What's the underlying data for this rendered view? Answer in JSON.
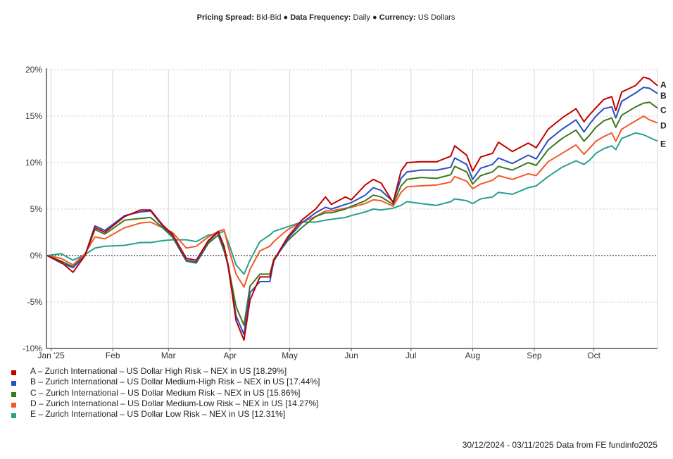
{
  "header": {
    "spread_label": "Pricing Spread:",
    "spread_value": "Bid-Bid",
    "freq_label": "Data Frequency:",
    "freq_value": "Daily",
    "currency_label": "Currency:",
    "currency_value": "US Dollars",
    "separator": "●"
  },
  "chart_data": {
    "type": "line",
    "title": "",
    "xlabel": "",
    "ylabel": "",
    "x_unit": "days since 30/12/2024",
    "xlim": [
      0,
      308
    ],
    "ylim": [
      -10,
      20
    ],
    "yticks": [
      20,
      15,
      10,
      5,
      0,
      -5,
      -10
    ],
    "ytick_labels": [
      "20%",
      "15%",
      "10%",
      "5%",
      "0%",
      "-5%",
      "-10%"
    ],
    "xticks": [
      2,
      33,
      61,
      92,
      122,
      153,
      183,
      214,
      245,
      275
    ],
    "xtick_labels": [
      "Jan '25",
      "Feb",
      "Mar",
      "Apr",
      "May",
      "Jun",
      "Jul",
      "Aug",
      "Sep",
      "Oct"
    ],
    "grid": true,
    "legend_position": "bottom-left",
    "x": [
      0,
      7,
      13,
      19,
      24,
      29,
      39,
      47,
      52,
      58,
      63,
      70,
      75,
      81,
      86,
      89,
      91,
      95,
      99,
      102,
      107,
      112,
      114,
      121,
      128,
      135,
      140,
      143,
      150,
      153,
      160,
      164,
      168,
      174,
      178,
      181,
      188,
      196,
      203,
      205,
      211,
      214,
      218,
      224,
      227,
      234,
      242,
      246,
      252,
      259,
      266,
      270,
      273,
      276,
      280,
      284,
      286,
      289,
      296,
      300,
      303,
      307
    ],
    "series": [
      {
        "id": "A",
        "name": "A – Zurich International – US Dollar High Risk – NEX in US [18.29%]",
        "color": "#c00000",
        "values": [
          0,
          -0.7,
          -1.8,
          0,
          3.0,
          2.5,
          4.2,
          4.9,
          4.9,
          3.3,
          2.3,
          -0.3,
          -0.5,
          1.6,
          2.6,
          1.0,
          -1.0,
          -7.0,
          -9.1,
          -4.8,
          -2.3,
          -2.3,
          -0.5,
          2.0,
          3.8,
          5.0,
          6.3,
          5.5,
          6.3,
          6.0,
          7.6,
          8.2,
          7.8,
          5.7,
          9.1,
          10.0,
          10.1,
          10.1,
          10.7,
          11.8,
          10.8,
          9.1,
          10.6,
          11.0,
          12.2,
          11.2,
          12.1,
          11.6,
          13.6,
          14.8,
          15.8,
          14.4,
          15.2,
          15.9,
          16.8,
          17.1,
          15.6,
          17.6,
          18.3,
          19.2,
          19.0,
          18.29
        ]
      },
      {
        "id": "B",
        "name": "B – Zurich International – US Dollar Medium-High Risk – NEX in US [17.44%]",
        "color": "#2a4fbf",
        "values": [
          0,
          -0.8,
          -1.3,
          0,
          3.2,
          2.7,
          4.3,
          4.7,
          4.8,
          3.2,
          2.2,
          -0.5,
          -0.7,
          1.5,
          2.5,
          0.8,
          -1.2,
          -6.5,
          -8.5,
          -4.0,
          -2.8,
          -2.8,
          -0.6,
          1.8,
          3.5,
          4.6,
          5.2,
          5.0,
          5.5,
          5.7,
          6.5,
          7.3,
          7.0,
          5.8,
          8.3,
          9.0,
          9.2,
          9.2,
          9.5,
          10.5,
          9.8,
          8.2,
          9.4,
          9.8,
          10.5,
          9.9,
          10.8,
          10.4,
          12.4,
          13.6,
          14.6,
          13.3,
          14.2,
          15.0,
          15.8,
          16.0,
          14.8,
          16.6,
          17.5,
          18.1,
          18.0,
          17.44
        ]
      },
      {
        "id": "C",
        "name": "C – Zurich International – US Dollar Medium Risk – NEX in US [15.86%]",
        "color": "#3a7a1a",
        "values": [
          0,
          -0.6,
          -1.2,
          0,
          2.8,
          2.3,
          3.8,
          4.0,
          4.1,
          3.0,
          2.0,
          -0.6,
          -0.8,
          1.3,
          2.2,
          0.5,
          -1.0,
          -5.5,
          -7.5,
          -3.3,
          -2.0,
          -2.0,
          -0.4,
          1.6,
          3.0,
          4.2,
          4.6,
          4.6,
          5.0,
          5.3,
          5.9,
          6.5,
          6.3,
          5.5,
          7.5,
          8.2,
          8.4,
          8.3,
          8.7,
          9.6,
          9.0,
          7.7,
          8.6,
          9.0,
          9.6,
          9.2,
          10.0,
          9.7,
          11.4,
          12.6,
          13.5,
          12.3,
          13.0,
          13.8,
          14.5,
          14.8,
          13.8,
          15.1,
          16.0,
          16.4,
          16.5,
          15.86
        ]
      },
      {
        "id": "D",
        "name": "D – Zurich International – US Dollar Medium-Low Risk – NEX in US [14.27%]",
        "color": "#f05a28",
        "values": [
          0,
          -0.3,
          -1.0,
          0.2,
          2.0,
          1.8,
          3.0,
          3.5,
          3.6,
          3.0,
          2.5,
          0.8,
          1.0,
          2.0,
          2.6,
          2.8,
          1.0,
          -2.0,
          -3.4,
          -1.5,
          0.5,
          1.0,
          1.5,
          2.8,
          3.6,
          4.2,
          4.8,
          4.8,
          5.1,
          5.2,
          5.6,
          6.0,
          5.9,
          5.3,
          6.8,
          7.4,
          7.5,
          7.6,
          7.9,
          8.5,
          8.0,
          7.2,
          7.7,
          8.1,
          8.6,
          8.2,
          8.8,
          8.6,
          10.1,
          11.0,
          11.9,
          10.9,
          11.6,
          12.3,
          12.8,
          13.2,
          12.3,
          13.6,
          14.5,
          15.0,
          14.6,
          14.27
        ]
      },
      {
        "id": "E",
        "name": "E – Zurich International – US Dollar Low Risk – NEX in US [12.31%]",
        "color": "#26a08f",
        "values": [
          0,
          0.2,
          -0.5,
          0.1,
          0.8,
          1.0,
          1.1,
          1.4,
          1.4,
          1.6,
          1.7,
          1.7,
          1.5,
          2.2,
          2.4,
          2.6,
          1.5,
          -1.0,
          -2.0,
          -0.5,
          1.5,
          2.2,
          2.6,
          3.1,
          3.6,
          3.6,
          3.8,
          3.9,
          4.1,
          4.3,
          4.7,
          5.0,
          4.9,
          5.1,
          5.4,
          5.8,
          5.6,
          5.4,
          5.8,
          6.1,
          5.9,
          5.6,
          6.1,
          6.3,
          6.8,
          6.6,
          7.3,
          7.5,
          8.5,
          9.5,
          10.2,
          9.8,
          10.3,
          11.0,
          11.5,
          11.8,
          11.4,
          12.6,
          13.2,
          13.0,
          12.7,
          12.31
        ]
      }
    ]
  },
  "footer": "30/12/2024 - 03/11/2025 Data from FE fundinfo2025"
}
